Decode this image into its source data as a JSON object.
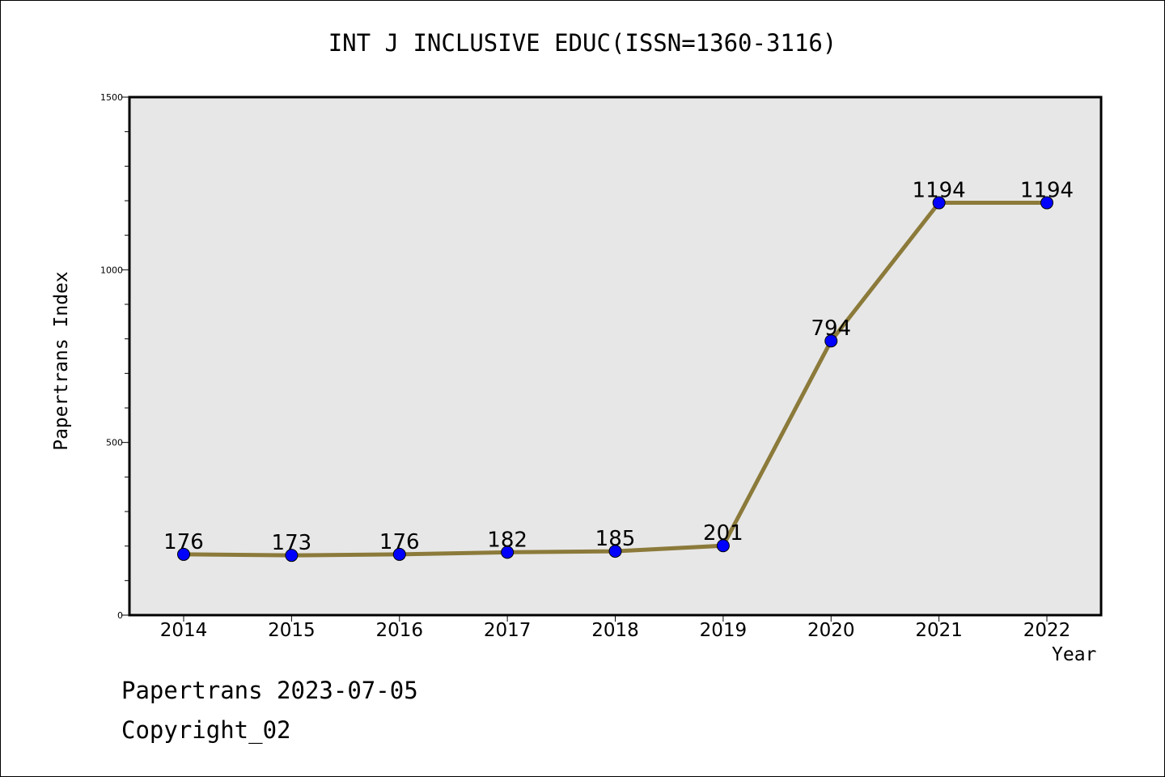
{
  "chart_data": {
    "type": "line",
    "title": "INT J INCLUSIVE EDUC(ISSN=1360-3116)",
    "xlabel": "Year",
    "ylabel": "Papertrans Index",
    "categories": [
      "2014",
      "2015",
      "2016",
      "2017",
      "2018",
      "2019",
      "2020",
      "2021",
      "2022"
    ],
    "values": [
      176,
      173,
      176,
      182,
      185,
      201,
      794,
      1194,
      1194
    ],
    "ylim": [
      0,
      1500
    ],
    "yticks": [
      0,
      500,
      1000,
      1500
    ],
    "grid": false,
    "colors": {
      "line": "#8b7a3a",
      "marker": "#0000ff",
      "plot_bg": "#e7e7e7"
    }
  },
  "footer": {
    "line1": "Papertrans 2023-07-05",
    "line2": "Copyright_02"
  }
}
